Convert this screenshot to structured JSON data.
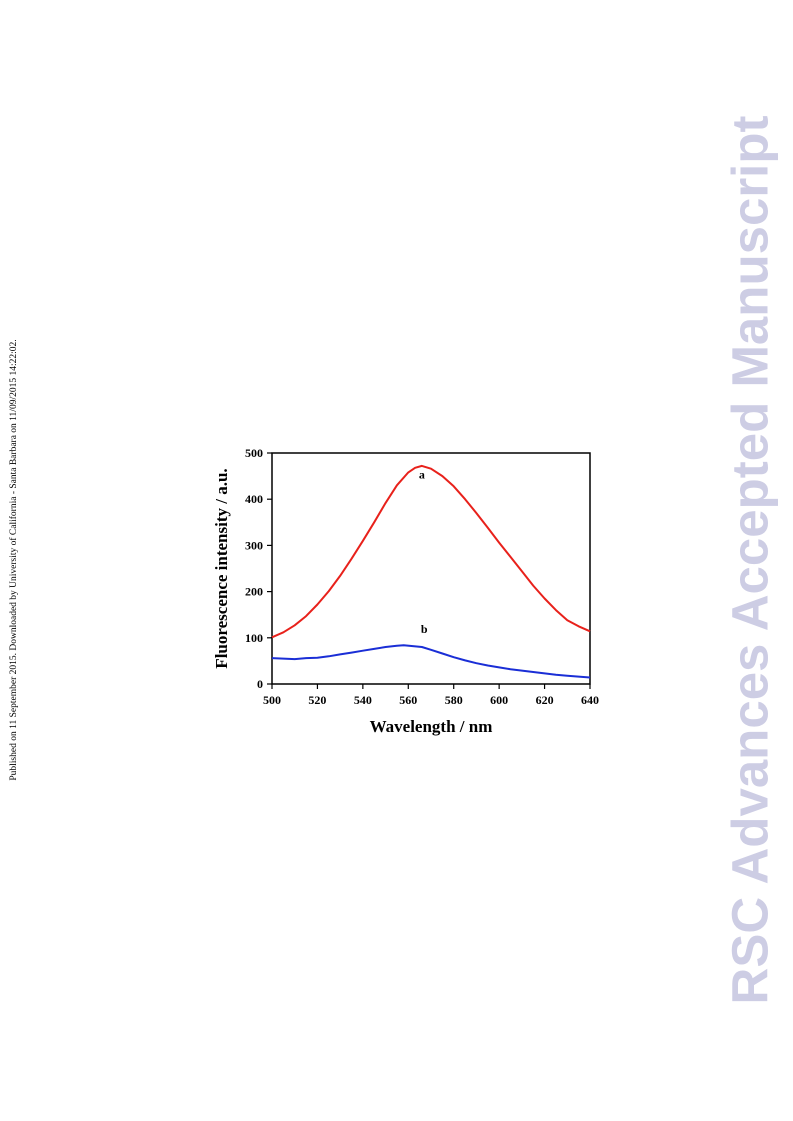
{
  "page": {
    "side_note": "Published on 11 September 2015. Downloaded by University of California - Santa Barbara on 11/09/2015 14:22:02.",
    "watermark": "RSC Advances Accepted Manuscript"
  },
  "chart_data": {
    "type": "line",
    "xlabel": "Wavelength / nm",
    "ylabel": "Fluorescence intensity / a.u.",
    "xlim": [
      500,
      640
    ],
    "ylim": [
      0,
      500
    ],
    "xticks": [
      500,
      520,
      540,
      560,
      580,
      600,
      620,
      640
    ],
    "yticks": [
      0,
      100,
      200,
      300,
      400,
      500
    ],
    "grid": false,
    "series": [
      {
        "name": "a",
        "color": "#e8211b",
        "x": [
          500,
          505,
          510,
          515,
          520,
          525,
          530,
          535,
          540,
          545,
          550,
          555,
          560,
          563,
          566,
          570,
          575,
          580,
          585,
          590,
          595,
          600,
          605,
          610,
          615,
          620,
          625,
          630,
          635,
          640
        ],
        "y": [
          101,
          112,
          127,
          147,
          172,
          201,
          234,
          271,
          310,
          350,
          392,
          430,
          458,
          468,
          472,
          466,
          450,
          428,
          400,
          370,
          338,
          306,
          275,
          244,
          213,
          185,
          160,
          138,
          125,
          114
        ],
        "label": "a",
        "label_at": [
          566,
          445
        ]
      },
      {
        "name": "b",
        "color": "#1a2ed6",
        "x": [
          500,
          505,
          510,
          515,
          520,
          525,
          530,
          535,
          540,
          545,
          550,
          555,
          558,
          562,
          566,
          570,
          575,
          580,
          585,
          590,
          595,
          600,
          605,
          610,
          615,
          620,
          625,
          630,
          635,
          640
        ],
        "y": [
          56,
          55,
          54,
          56,
          57,
          60,
          64,
          68,
          72,
          76,
          80,
          83,
          84,
          82,
          80,
          74,
          66,
          58,
          51,
          45,
          40,
          36,
          32,
          29,
          26,
          23,
          20,
          18,
          16,
          14
        ],
        "label": "b",
        "label_at": [
          567,
          110
        ]
      }
    ]
  }
}
